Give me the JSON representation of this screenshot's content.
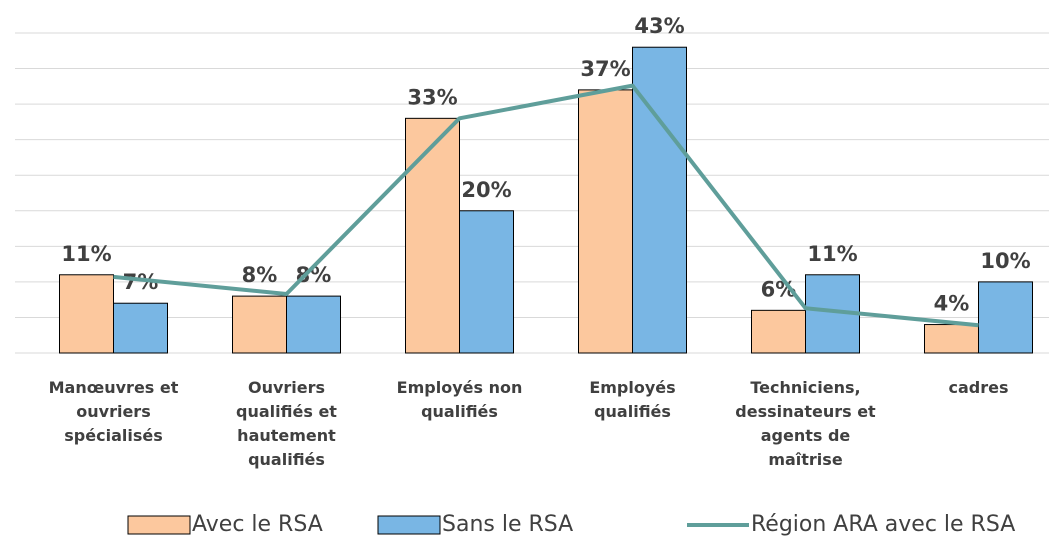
{
  "chart_data": {
    "type": "bar",
    "categories": [
      "Manœuvres et\nouvriers\nspécialisés",
      "Ouvriers\nqualifiés et\nhautement\nqualifiés",
      "Employés non\nqualifiés",
      "Employés\nqualifiés",
      "Techniciens,\ndessinateurs et\nagents de\nmaîtrise",
      "cadres"
    ],
    "series": [
      {
        "name": "Avec le RSA",
        "type": "bar",
        "color": "#fcc89e",
        "values": [
          11,
          8,
          33,
          37,
          6,
          4
        ],
        "value_labels": [
          "11%",
          "8%",
          "33%",
          "37%",
          "6%",
          "4%"
        ]
      },
      {
        "name": "Sans le RSA",
        "type": "bar",
        "color": "#79b6e4",
        "values": [
          7,
          8,
          20,
          43,
          11,
          10
        ],
        "value_labels": [
          "7%",
          "8%",
          "20%",
          "43%",
          "11%",
          "10%"
        ]
      },
      {
        "name": "Région ARA avec le RSA",
        "type": "line",
        "color": "#5f9e9a",
        "values": [
          10.7,
          8.3,
          33,
          37.6,
          6.3,
          3.9
        ]
      }
    ],
    "ylim": [
      0,
      45
    ],
    "yticks": [
      0,
      5,
      10,
      15,
      20,
      25,
      30,
      35,
      40,
      45
    ],
    "grid": true
  }
}
